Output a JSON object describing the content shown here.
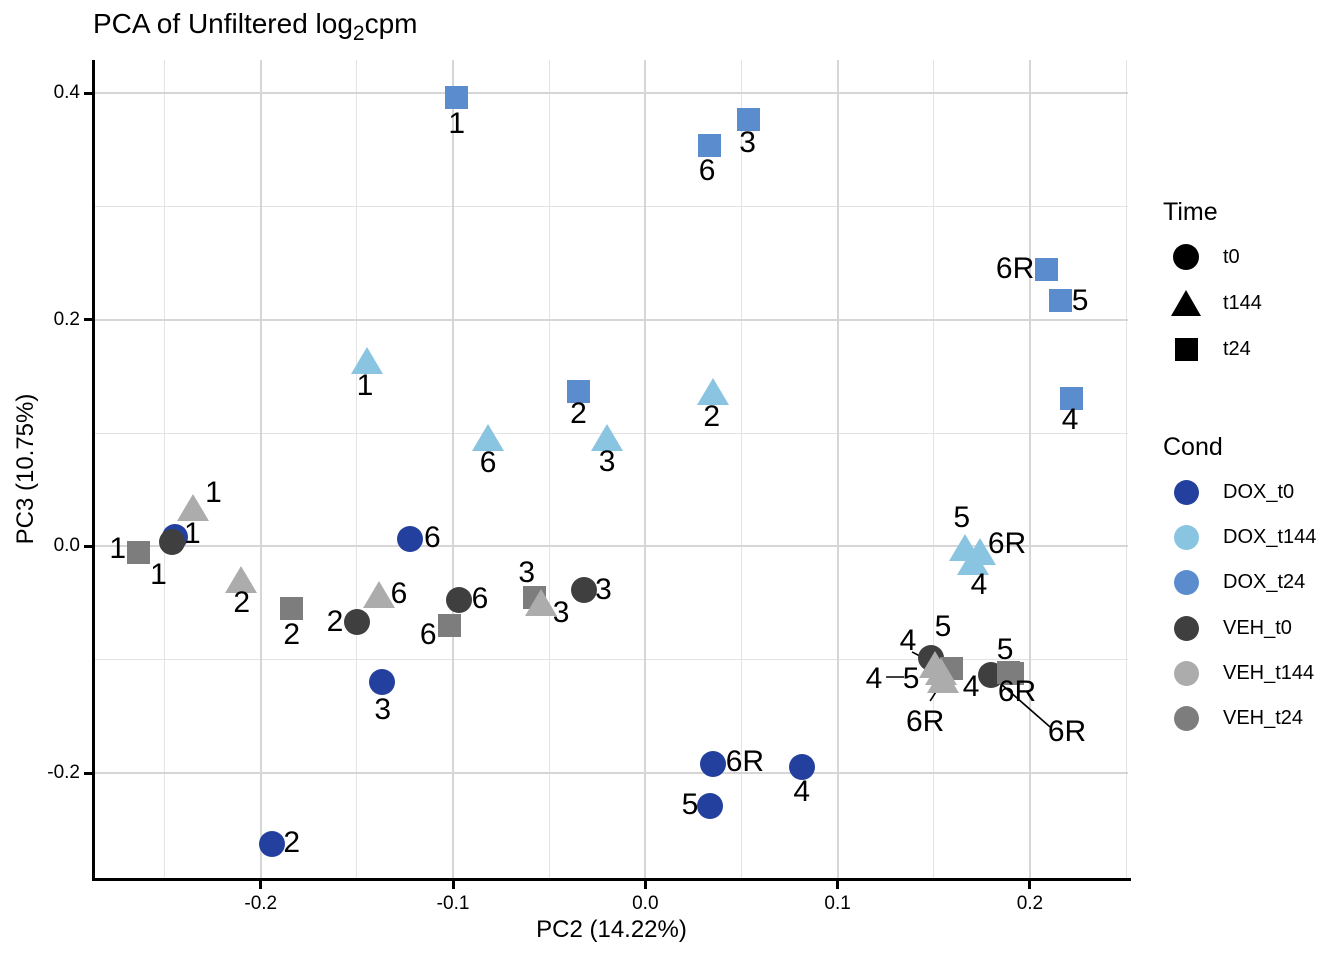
{
  "title": {
    "prefix": "PCA of Unfiltered log",
    "sub": "2",
    "suffix": "cpm"
  },
  "legend_time": {
    "title": "Time",
    "items": [
      {
        "label": "t0",
        "shape": "circle"
      },
      {
        "label": "t144",
        "shape": "triangle"
      },
      {
        "label": "t24",
        "shape": "square"
      }
    ]
  },
  "legend_cond": {
    "title": "Cond",
    "items": [
      {
        "label": "DOX_t0",
        "color": "#24409E"
      },
      {
        "label": "DOX_t144",
        "color": "#89C4E1"
      },
      {
        "label": "DOX_t24",
        "color": "#5B8DCE"
      },
      {
        "label": "VEH_t0",
        "color": "#3F3F3F"
      },
      {
        "label": "VEH_t144",
        "color": "#ACACAC"
      },
      {
        "label": "VEH_t24",
        "color": "#7D7D7D"
      }
    ]
  },
  "chart_data": {
    "type": "scatter",
    "title": "PCA of Unfiltered log2cpm",
    "xlabel": "PC2 (14.22%)",
    "ylabel": "PC3 (10.75%)",
    "xlim": [
      -0.2862,
      0.251
    ],
    "ylim": [
      -0.2926,
      0.4294
    ],
    "x_major_ticks": [
      {
        "value": -0.2,
        "label": "-0.2"
      },
      {
        "value": -0.1,
        "label": "-0.1"
      },
      {
        "value": 0.0,
        "label": "0.0"
      },
      {
        "value": 0.1,
        "label": "0.1"
      },
      {
        "value": 0.2,
        "label": "0.2"
      }
    ],
    "y_major_ticks": [
      {
        "value": 0.4,
        "label": "0.4"
      },
      {
        "value": 0.2,
        "label": "0.2"
      },
      {
        "value": 0.0,
        "label": "0.0"
      },
      {
        "value": -0.2,
        "label": "-0.2"
      }
    ],
    "x_minor_gridlines": [
      -0.25,
      -0.15,
      -0.05,
      0.05,
      0.15,
      0.25
    ],
    "y_minor_gridlines": [
      0.3,
      0.1,
      -0.1
    ],
    "grid": true,
    "legend_position": "right",
    "series": [
      {
        "name": "DOX_t0",
        "time": "t0",
        "shape": "circle",
        "color": "#24409E",
        "points": [
          {
            "sample": "1",
            "x": -0.2448,
            "y": 0.0085
          },
          {
            "sample": "6",
            "x": -0.1222,
            "y": 0.0065
          },
          {
            "sample": "3",
            "x": -0.137,
            "y": -0.12
          },
          {
            "sample": "2",
            "x": -0.1944,
            "y": -0.263
          },
          {
            "sample": "6R",
            "x": 0.035,
            "y": -0.192
          },
          {
            "sample": "5",
            "x": 0.0338,
            "y": -0.229
          },
          {
            "sample": "4",
            "x": 0.0817,
            "y": -0.1945
          }
        ]
      },
      {
        "name": "DOX_t144",
        "time": "t144",
        "shape": "triangle",
        "color": "#89C4E1",
        "points": [
          {
            "sample": "1",
            "x": -0.145,
            "y": 0.164
          },
          {
            "sample": "6",
            "x": -0.0818,
            "y": 0.096
          },
          {
            "sample": "3",
            "x": -0.02,
            "y": 0.0965
          },
          {
            "sample": "2",
            "x": 0.0353,
            "y": 0.1365
          },
          {
            "sample": "5",
            "x": 0.1663,
            "y": -0.001
          },
          {
            "sample": "6R",
            "x": 0.174,
            "y": -0.0045
          },
          {
            "sample": "4",
            "x": 0.1703,
            "y": -0.013
          }
        ]
      },
      {
        "name": "DOX_t24",
        "time": "t24",
        "shape": "square",
        "color": "#5B8DCE",
        "points": [
          {
            "sample": "1",
            "x": -0.0983,
            "y": 0.3962
          },
          {
            "sample": "6",
            "x": 0.0332,
            "y": 0.354
          },
          {
            "sample": "3",
            "x": 0.0535,
            "y": 0.3765
          },
          {
            "sample": "2",
            "x": -0.0348,
            "y": 0.1372
          },
          {
            "sample": "6R",
            "x": 0.2088,
            "y": 0.2449
          },
          {
            "sample": "5",
            "x": 0.2157,
            "y": 0.2167
          },
          {
            "sample": "4",
            "x": 0.2218,
            "y": 0.1308
          }
        ]
      },
      {
        "name": "VEH_t0",
        "time": "t0",
        "shape": "circle",
        "color": "#3F3F3F",
        "points": [
          {
            "sample": "1",
            "x": -0.2462,
            "y": 0.0042
          },
          {
            "sample": "2",
            "x": -0.1498,
            "y": -0.067
          },
          {
            "sample": "6",
            "x": -0.097,
            "y": -0.047
          },
          {
            "sample": "3",
            "x": -0.032,
            "y": -0.0385
          },
          {
            "sample": "4",
            "x": 0.1485,
            "y": -0.0985
          },
          {
            "sample": "6R",
            "x": 0.1797,
            "y": -0.1135
          }
        ]
      },
      {
        "name": "VEH_t24",
        "time": "t24",
        "shape": "square",
        "color": "#7D7D7D",
        "points": [
          {
            "sample": "1",
            "x": -0.2635,
            "y": -0.0055
          },
          {
            "sample": "2",
            "x": -0.1838,
            "y": -0.0545
          },
          {
            "sample": "6",
            "x": -0.1018,
            "y": -0.0695
          },
          {
            "sample": "3",
            "x": -0.0574,
            "y": -0.0448
          },
          {
            "sample": "5",
            "x": 0.159,
            "y": -0.1075
          },
          {
            "sample": "4",
            "x": 0.1888,
            "y": -0.1108
          },
          {
            "sample": "6R",
            "x": 0.191,
            "y": -0.1125
          }
        ]
      },
      {
        "name": "VEH_t144",
        "time": "t144",
        "shape": "triangle",
        "color": "#ACACAC",
        "points": [
          {
            "sample": "1",
            "x": -0.235,
            "y": 0.034
          },
          {
            "sample": "2",
            "x": -0.2102,
            "y": -0.0295
          },
          {
            "sample": "6",
            "x": -0.1385,
            "y": -0.042
          },
          {
            "sample": "3",
            "x": -0.0542,
            "y": -0.049
          },
          {
            "sample": "5",
            "x": 0.1505,
            "y": -0.1045
          },
          {
            "sample": "4",
            "x": 0.154,
            "y": -0.11
          },
          {
            "sample": "6R",
            "x": 0.1548,
            "y": -0.117
          }
        ]
      }
    ],
    "annotations": [
      {
        "t": "1",
        "x": -0.0981,
        "y": 0.373
      },
      {
        "t": "6",
        "x": 0.0321,
        "y": 0.3312
      },
      {
        "t": "3",
        "x": 0.0532,
        "y": 0.3562
      },
      {
        "t": "2",
        "x": -0.0348,
        "y": 0.117
      },
      {
        "t": "6R",
        "x": 0.1923,
        "y": 0.2449
      },
      {
        "t": "5",
        "x": 0.2261,
        "y": 0.2167
      },
      {
        "t": "4",
        "x": 0.2209,
        "y": 0.1116
      },
      {
        "t": "1",
        "x": -0.1458,
        "y": 0.1417
      },
      {
        "t": "6",
        "x": -0.0818,
        "y": 0.0737
      },
      {
        "t": "3",
        "x": -0.0199,
        "y": 0.0746
      },
      {
        "t": "2",
        "x": 0.0345,
        "y": 0.1143
      },
      {
        "t": "5",
        "x": 0.1645,
        "y": 0.0249
      },
      {
        "t": "6R",
        "x": 0.1881,
        "y": 0.0022
      },
      {
        "t": "4",
        "x": 0.1735,
        "y": -0.034
      },
      {
        "t": "1",
        "x": -0.2532,
        "y": -0.0252
      },
      {
        "t": "6",
        "x": -0.1108,
        "y": 0.0072
      },
      {
        "t": "3",
        "x": -0.1366,
        "y": -0.1443
      },
      {
        "t": "2",
        "x": -0.1839,
        "y": -0.262
      },
      {
        "t": "5",
        "x": 0.0232,
        "y": -0.2281
      },
      {
        "t": "6R",
        "x": 0.0518,
        "y": -0.1899
      },
      {
        "t": "4",
        "x": 0.0813,
        "y": -0.2164
      },
      {
        "t": "1",
        "x": -0.2356,
        "y": 0.0108
      },
      {
        "t": "2",
        "x": -0.1614,
        "y": -0.0669
      },
      {
        "t": "6",
        "x": -0.086,
        "y": -0.0466
      },
      {
        "t": "3",
        "x": -0.0218,
        "y": -0.0384
      },
      {
        "t": "1",
        "x": -0.2246,
        "y": 0.0475
      },
      {
        "t": "2",
        "x": -0.2099,
        "y": -0.0501
      },
      {
        "t": "6",
        "x": -0.1281,
        "y": -0.0422
      },
      {
        "t": "3",
        "x": -0.0438,
        "y": -0.059
      },
      {
        "t": "1",
        "x": -0.2744,
        "y": -0.0025
      },
      {
        "t": "2",
        "x": -0.1839,
        "y": -0.0781
      },
      {
        "t": "6",
        "x": -0.1129,
        "y": -0.0781
      },
      {
        "t": "3",
        "x": -0.0617,
        "y": -0.0237
      },
      {
        "t": "5",
        "x": 0.1548,
        "y": -0.071
      },
      {
        "t": "4",
        "x": 0.1366,
        "y": -0.0834
      },
      {
        "t": "4",
        "x": 0.1189,
        "y": -0.1169
      },
      {
        "t": "5",
        "x": 0.1382,
        "y": -0.1169
      },
      {
        "t": "6R",
        "x": 0.1455,
        "y": -0.1549
      },
      {
        "t": "5",
        "x": 0.1871,
        "y": -0.0913
      },
      {
        "t": "4",
        "x": 0.1694,
        "y": -0.124
      },
      {
        "t": "6R",
        "x": 0.1933,
        "y": -0.1284
      },
      {
        "t": "6R",
        "x": 0.2193,
        "y": -0.1637
      }
    ],
    "leader_lines": [
      {
        "x1": 0.1387,
        "y1": -0.0931,
        "x2": 0.1507,
        "y2": -0.1037
      },
      {
        "x1": 0.1252,
        "y1": -0.1152,
        "x2": 0.1345,
        "y2": -0.1152
      },
      {
        "x1": 0.1434,
        "y1": -0.1152,
        "x2": 0.1501,
        "y2": -0.1108
      },
      {
        "x1": 0.1481,
        "y1": -0.1363,
        "x2": 0.1538,
        "y2": -0.1213
      },
      {
        "x1": 0.1808,
        "y1": -0.1152,
        "x2": 0.2105,
        "y2": -0.1593
      }
    ]
  }
}
